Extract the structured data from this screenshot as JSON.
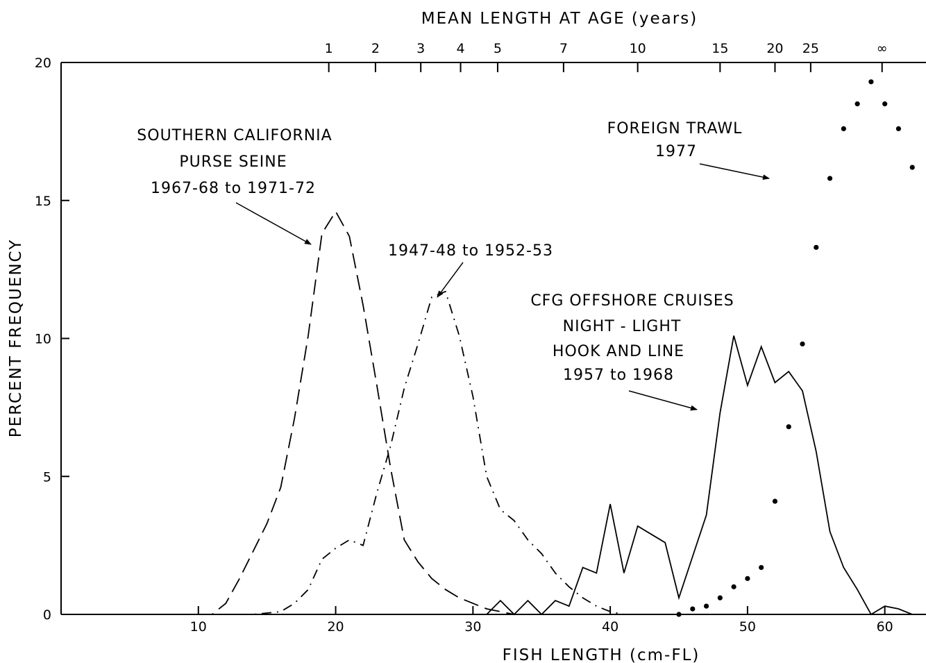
{
  "chart_data": {
    "type": "line",
    "title": "",
    "xlabel": "FISH LENGTH (cm-FL)",
    "ylabel": "PERCENT FREQUENCY",
    "xlim": [
      0,
      63
    ],
    "ylim": [
      0,
      20
    ],
    "x_ticks": [
      10,
      20,
      30,
      40,
      50,
      60
    ],
    "x_tick_labels": [
      "10",
      "20",
      "30",
      "40",
      "50",
      "60"
    ],
    "y_ticks": [
      0,
      5,
      10,
      15,
      20
    ],
    "y_tick_labels": [
      "0",
      "5",
      "10",
      "15",
      "20"
    ],
    "grid": false,
    "legend": "none",
    "secondary_x_axis": {
      "label": "MEAN LENGTH AT AGE (years)",
      "ticks": [
        {
          "label": "1",
          "x": 19.5
        },
        {
          "label": "2",
          "x": 22.9
        },
        {
          "label": "3",
          "x": 26.2
        },
        {
          "label": "4",
          "x": 29.1
        },
        {
          "label": "5",
          "x": 31.8
        },
        {
          "label": "7",
          "x": 36.6
        },
        {
          "label": "10",
          "x": 42.0
        },
        {
          "label": "15",
          "x": 48.0
        },
        {
          "label": "20",
          "x": 52.0
        },
        {
          "label": "25",
          "x": 54.6
        },
        {
          "label": "∞",
          "x": 59.8
        }
      ]
    },
    "series": [
      {
        "style": "dashed",
        "points": [
          [
            10,
            0
          ],
          [
            11,
            0
          ],
          [
            12,
            0.4
          ],
          [
            13,
            1.3
          ],
          [
            14,
            2.3
          ],
          [
            15,
            3.3
          ],
          [
            16,
            4.6
          ],
          [
            17,
            7.1
          ],
          [
            18,
            10.1
          ],
          [
            19,
            13.8
          ],
          [
            20,
            14.6
          ],
          [
            21,
            13.7
          ],
          [
            22,
            11.2
          ],
          [
            23,
            8.3
          ],
          [
            24,
            5.3
          ],
          [
            25,
            2.7
          ],
          [
            26,
            1.9
          ],
          [
            27,
            1.3
          ],
          [
            28,
            0.9
          ],
          [
            29,
            0.6
          ],
          [
            30,
            0.4
          ],
          [
            31,
            0.2
          ],
          [
            32,
            0.1
          ],
          [
            33,
            0
          ],
          [
            34,
            0
          ]
        ]
      },
      {
        "style": "dash-dot",
        "points": [
          [
            13,
            0
          ],
          [
            14,
            0
          ],
          [
            15,
            0.05
          ],
          [
            16,
            0.1
          ],
          [
            17,
            0.4
          ],
          [
            18,
            0.9
          ],
          [
            19,
            2.0
          ],
          [
            20,
            2.4
          ],
          [
            21,
            2.7
          ],
          [
            22,
            2.5
          ],
          [
            23,
            4.4
          ],
          [
            24,
            6.1
          ],
          [
            25,
            8.2
          ],
          [
            26,
            9.8
          ],
          [
            27,
            11.5
          ],
          [
            28,
            11.7
          ],
          [
            29,
            10.1
          ],
          [
            30,
            7.9
          ],
          [
            31,
            5.0
          ],
          [
            32,
            3.8
          ],
          [
            33,
            3.4
          ],
          [
            34,
            2.7
          ],
          [
            35,
            2.2
          ],
          [
            36,
            1.5
          ],
          [
            37,
            1.0
          ],
          [
            38,
            0.6
          ],
          [
            39,
            0.3
          ],
          [
            40,
            0.1
          ],
          [
            41,
            0
          ]
        ]
      },
      {
        "style": "solid",
        "points": [
          [
            31,
            0
          ],
          [
            32,
            0.5
          ],
          [
            33,
            0
          ],
          [
            34,
            0.5
          ],
          [
            35,
            0
          ],
          [
            36,
            0.5
          ],
          [
            37,
            0.3
          ],
          [
            38,
            1.7
          ],
          [
            39,
            1.5
          ],
          [
            40,
            4.0
          ],
          [
            41,
            1.5
          ],
          [
            42,
            3.2
          ],
          [
            43,
            2.9
          ],
          [
            44,
            2.6
          ],
          [
            45,
            0.6
          ],
          [
            46,
            2.1
          ],
          [
            47,
            3.6
          ],
          [
            48,
            7.3
          ],
          [
            49,
            10.1
          ],
          [
            50,
            8.3
          ],
          [
            51,
            9.7
          ],
          [
            52,
            8.4
          ],
          [
            53,
            8.8
          ],
          [
            54,
            8.1
          ],
          [
            55,
            5.9
          ],
          [
            56,
            3.0
          ],
          [
            57,
            1.7
          ],
          [
            58,
            0.9
          ],
          [
            59,
            0
          ],
          [
            60,
            0.3
          ],
          [
            61,
            0.2
          ],
          [
            62,
            0
          ]
        ]
      },
      {
        "style": "dotted",
        "points": [
          [
            45,
            0
          ],
          [
            46,
            0.2
          ],
          [
            47,
            0.3
          ],
          [
            48,
            0.6
          ],
          [
            49,
            1.0
          ],
          [
            50,
            1.3
          ],
          [
            51,
            1.7
          ],
          [
            52,
            4.1
          ],
          [
            53,
            6.8
          ],
          [
            54,
            9.8
          ],
          [
            55,
            13.3
          ],
          [
            56,
            15.8
          ],
          [
            57,
            17.6
          ],
          [
            58,
            18.5
          ],
          [
            59,
            19.3
          ],
          [
            60,
            18.5
          ],
          [
            61,
            17.6
          ],
          [
            62,
            16.2
          ]
        ]
      }
    ],
    "annotations": [
      {
        "name": "purse-seine-1967",
        "lines": [
          "SOUTHERN CALIFORNIA",
          "PURSE SEINE",
          "1967-68 to 1971-72"
        ]
      },
      {
        "name": "purse-seine-1947",
        "lines": [
          "1947-48 to 1952-53"
        ]
      },
      {
        "name": "foreign-trawl",
        "lines": [
          "FOREIGN TRAWL",
          "1977"
        ]
      },
      {
        "name": "cfg-offshore",
        "lines": [
          "CFG OFFSHORE CRUISES",
          "NIGHT - LIGHT",
          "HOOK AND LINE",
          "1957 to 1968"
        ]
      }
    ]
  }
}
